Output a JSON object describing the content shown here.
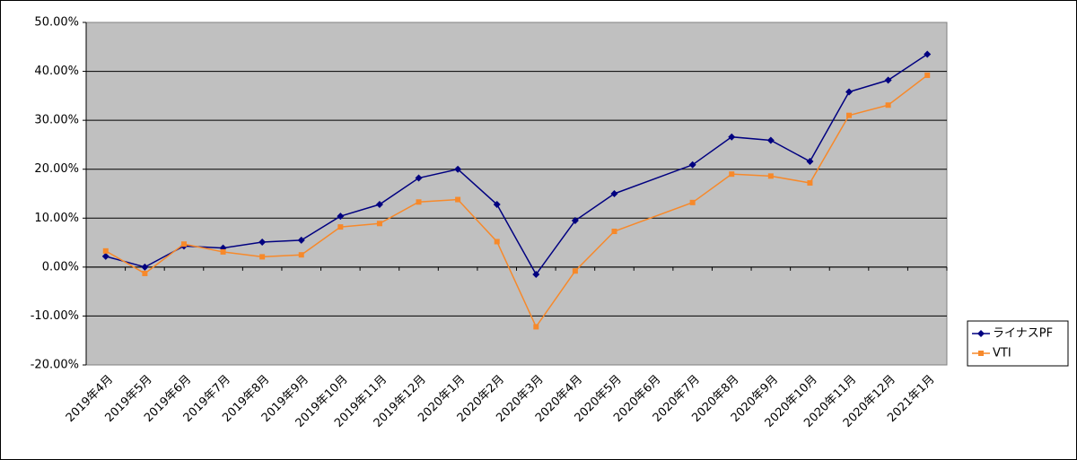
{
  "chart_data": {
    "type": "line",
    "categories": [
      "2019年4月",
      "2019年5月",
      "2019年6月",
      "2019年7月",
      "2019年8月",
      "2019年9月",
      "2019年10月",
      "2019年11月",
      "2019年12月",
      "2020年1月",
      "2020年2月",
      "2020年3月",
      "2020年4月",
      "2020年5月",
      "2020年6月",
      "2020年7月",
      "2020年8月",
      "2020年9月",
      "2020年10月",
      "2020年11月",
      "2020年12月",
      "2021年1月"
    ],
    "series": [
      {
        "name": "ライナスPF",
        "color": "#000080",
        "marker": "diamond",
        "values": [
          2.2,
          0.0,
          4.3,
          3.9,
          5.1,
          5.5,
          10.4,
          12.8,
          18.2,
          20.0,
          12.8,
          -1.5,
          9.5,
          15.0,
          null,
          20.9,
          26.6,
          25.9,
          21.6,
          35.8,
          38.2,
          43.5
        ]
      },
      {
        "name": "VTI",
        "color": "#f7892a",
        "marker": "square",
        "values": [
          3.3,
          -1.3,
          4.7,
          3.1,
          2.1,
          2.5,
          8.2,
          8.9,
          13.3,
          13.8,
          5.2,
          -12.2,
          -0.8,
          7.3,
          null,
          13.2,
          19.0,
          18.6,
          17.2,
          31.0,
          33.1,
          39.2
        ]
      }
    ],
    "ylim": [
      -20,
      50
    ],
    "yticks": [
      {
        "value": -20,
        "label": "-20.00%"
      },
      {
        "value": -10,
        "label": "-10.00%"
      },
      {
        "value": 0,
        "label": "0.00%"
      },
      {
        "value": 10,
        "label": "10.00%"
      },
      {
        "value": 20,
        "label": "20.00%"
      },
      {
        "value": 30,
        "label": "30.00%"
      },
      {
        "value": 40,
        "label": "40.00%"
      },
      {
        "value": 50,
        "label": "50.00%"
      }
    ],
    "grid": true,
    "connect_gaps": true,
    "legend": "right"
  }
}
